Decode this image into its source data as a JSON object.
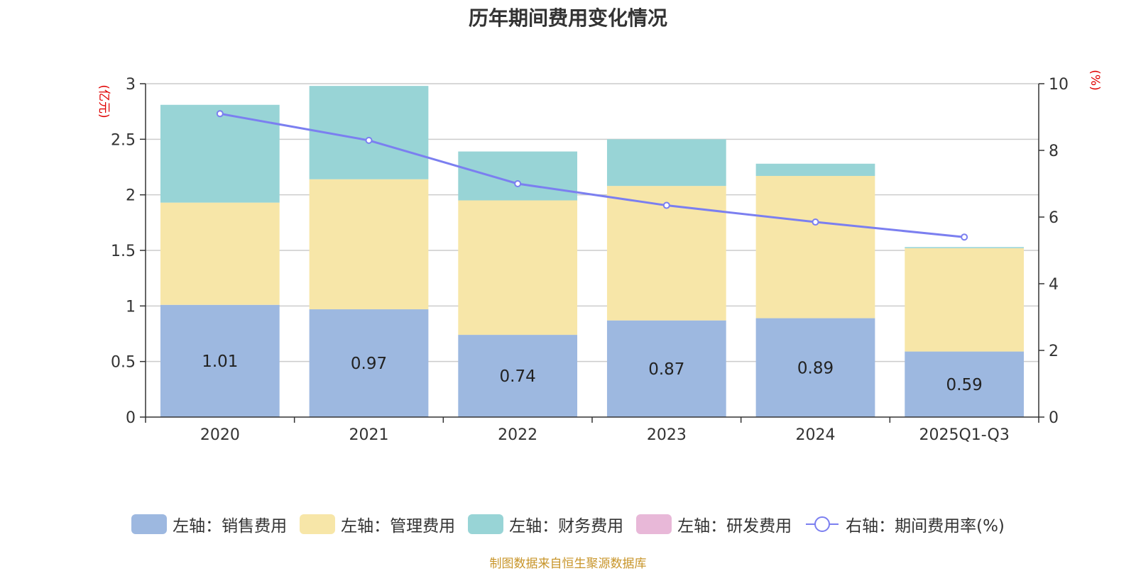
{
  "chart_data": {
    "type": "bar",
    "stacked": true,
    "title": "历年期间费用变化情况",
    "categories": [
      "2020",
      "2021",
      "2022",
      "2023",
      "2024",
      "2025Q1-Q3"
    ],
    "series": [
      {
        "name": "左轴：销售费用",
        "axis": "left",
        "color": "#9db8e0",
        "values": [
          1.01,
          0.97,
          0.74,
          0.87,
          0.89,
          0.59
        ],
        "show_labels": true
      },
      {
        "name": "左轴：管理费用",
        "axis": "left",
        "color": "#f7e6a8",
        "values": [
          0.92,
          1.17,
          1.21,
          1.21,
          1.28,
          0.93
        ],
        "show_labels": false
      },
      {
        "name": "左轴：财务费用",
        "axis": "left",
        "color": "#98d4d6",
        "values": [
          0.88,
          0.84,
          0.44,
          0.42,
          0.11,
          0.01
        ],
        "show_labels": false
      },
      {
        "name": "左轴：研发费用",
        "axis": "left",
        "color": "#e8b8d8",
        "values": [
          0,
          0,
          0,
          0,
          0,
          0
        ],
        "show_labels": false
      }
    ],
    "line": {
      "name": "右轴：期间费用率(%)",
      "axis": "right",
      "color": "#7b7ff0",
      "values": [
        9.1,
        8.3,
        7.0,
        6.35,
        5.85,
        5.4
      ]
    },
    "y_left": {
      "label": "(亿元)",
      "min": 0,
      "max": 3,
      "ticks": [
        0,
        0.5,
        1,
        1.5,
        2,
        2.5,
        3
      ],
      "tick_labels": [
        "0",
        "0.5",
        "1",
        "1.5",
        "2",
        "2.5",
        "3"
      ]
    },
    "y_right": {
      "label": "(%)",
      "min": 0,
      "max": 10,
      "ticks": [
        0,
        2,
        4,
        6,
        8,
        10
      ],
      "tick_labels": [
        "0",
        "2",
        "4",
        "6",
        "8",
        "10"
      ]
    },
    "grid": true,
    "legend_position": "bottom"
  },
  "footer": {
    "source": "制图数据来自恒生聚源数据库"
  }
}
